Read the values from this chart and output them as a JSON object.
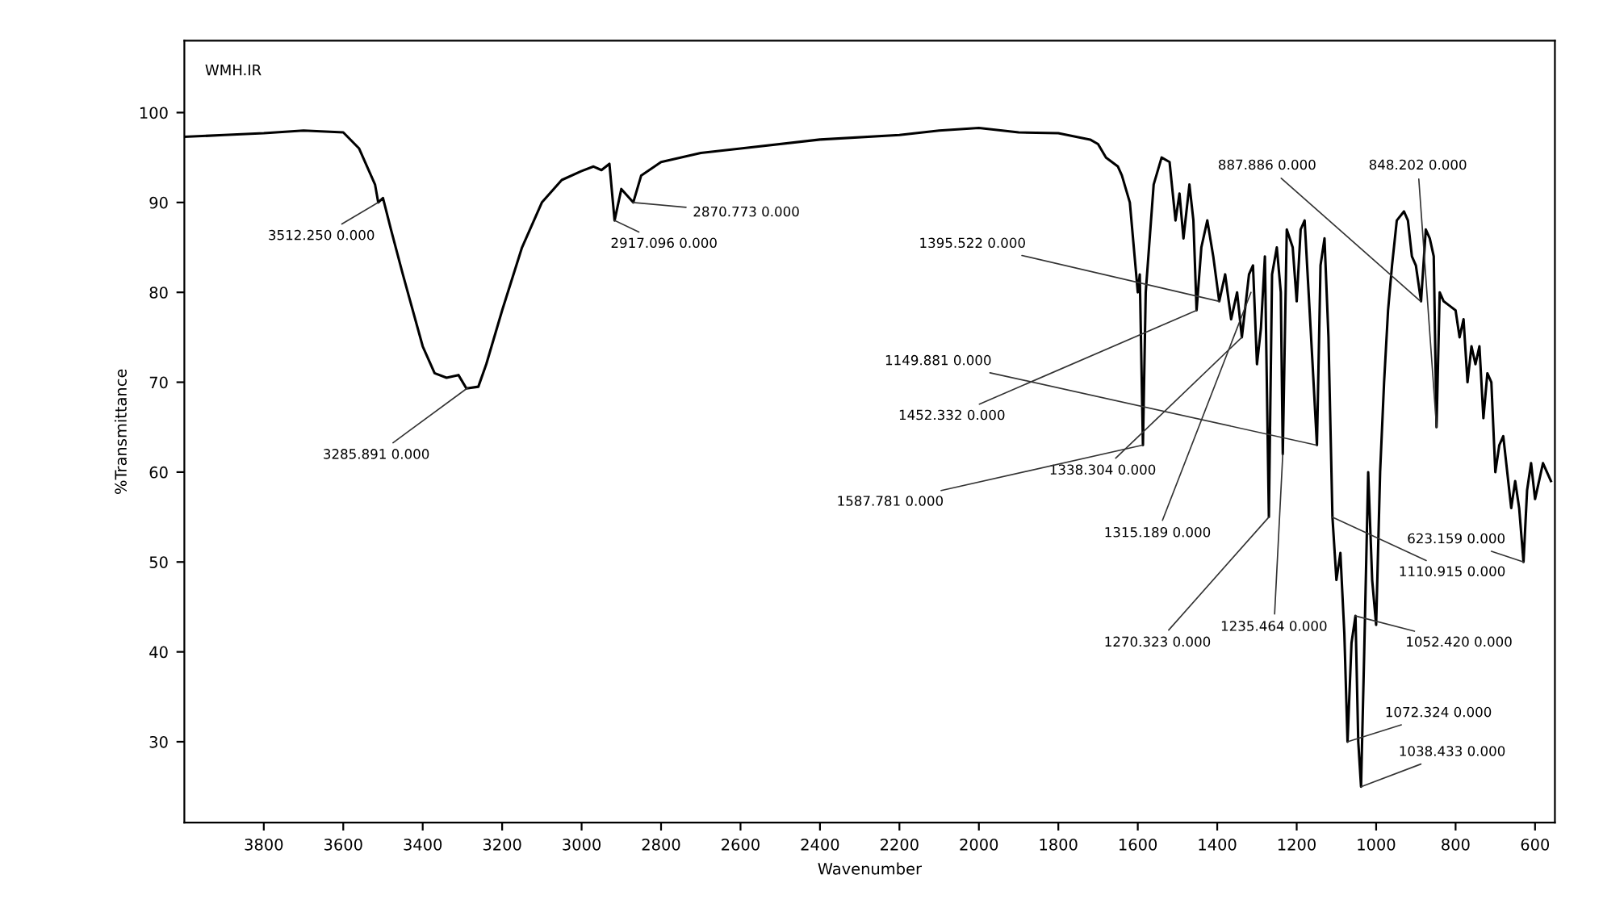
{
  "chart_data": {
    "type": "line",
    "xlabel": "Wavenumber",
    "ylabel": "%Transmittance",
    "xlim": [
      4000,
      550
    ],
    "ylim": [
      21,
      108
    ],
    "xticks": [
      3800,
      3600,
      3400,
      3200,
      3000,
      2800,
      2600,
      2400,
      2200,
      2000,
      1800,
      1600,
      1400,
      1200,
      1000,
      800,
      600
    ],
    "yticks": [
      30,
      40,
      50,
      60,
      70,
      80,
      90,
      100
    ],
    "grid": false,
    "legend": false,
    "marker": "none",
    "line_style": "solid",
    "x": [
      4000,
      3900,
      3800,
      3700,
      3600,
      3560,
      3520,
      3512,
      3500,
      3480,
      3450,
      3400,
      3370,
      3340,
      3310,
      3290,
      3260,
      3240,
      3200,
      3150,
      3100,
      3050,
      3000,
      2970,
      2950,
      2930,
      2917,
      2900,
      2880,
      2870,
      2850,
      2800,
      2700,
      2600,
      2400,
      2200,
      2100,
      2000,
      1900,
      1800,
      1720,
      1700,
      1680,
      1650,
      1640,
      1620,
      1600,
      1595,
      1587,
      1580,
      1560,
      1540,
      1520,
      1505,
      1495,
      1485,
      1470,
      1460,
      1452,
      1440,
      1425,
      1410,
      1395,
      1380,
      1365,
      1350,
      1338,
      1320,
      1310,
      1300,
      1290,
      1280,
      1270,
      1262,
      1250,
      1240,
      1235,
      1225,
      1210,
      1200,
      1190,
      1180,
      1170,
      1160,
      1149,
      1140,
      1130,
      1120,
      1110,
      1100,
      1090,
      1080,
      1072,
      1062,
      1052,
      1045,
      1038,
      1030,
      1020,
      1010,
      1000,
      990,
      980,
      970,
      960,
      948,
      930,
      920,
      910,
      900,
      887,
      875,
      865,
      855,
      848,
      840,
      830,
      815,
      800,
      790,
      780,
      770,
      760,
      750,
      740,
      730,
      720,
      710,
      700,
      690,
      680,
      670,
      660,
      650,
      640,
      629,
      620,
      610,
      600,
      590,
      580,
      560
    ],
    "series": [
      {
        "color": "#000000",
        "values": [
          97.3,
          97.5,
          97.7,
          98,
          97.8,
          96,
          92,
          90,
          90.5,
          87,
          82,
          74,
          71,
          70.5,
          70.8,
          69.3,
          69.5,
          72,
          78,
          85,
          90,
          92.5,
          93.5,
          94,
          93.6,
          94.3,
          88,
          91.5,
          90.5,
          90,
          93,
          94.5,
          95.5,
          96,
          97,
          97.5,
          98,
          98.3,
          97.8,
          97.7,
          97,
          96.5,
          95,
          94,
          93,
          90,
          80,
          82,
          63,
          80,
          92,
          95,
          94.5,
          88,
          91,
          86,
          92,
          88,
          78,
          85,
          88,
          84,
          79,
          82,
          77,
          80,
          75,
          82,
          83,
          72,
          76,
          84,
          55,
          82,
          85,
          80,
          62,
          87,
          85,
          79,
          87,
          88,
          80,
          72,
          63,
          83,
          86,
          75,
          55,
          48,
          51,
          42,
          30,
          41,
          44,
          30,
          25,
          40,
          60,
          48,
          43,
          60,
          70,
          78,
          83,
          88,
          89,
          88,
          84,
          83,
          79,
          87,
          86,
          84,
          65,
          80,
          79,
          78.5,
          78,
          75,
          77,
          70,
          74,
          72,
          74,
          66,
          71,
          70,
          60,
          63,
          64,
          60,
          56,
          59,
          56,
          50,
          58,
          61,
          57,
          59,
          61,
          59
        ]
      }
    ],
    "annotations": [
      "WMH.IR",
      {
        "text": "3512.250 0.000",
        "x": 3512,
        "y": 90
      },
      {
        "text": "3285.891 0.000",
        "x": 3286,
        "y": 69.4
      },
      {
        "text": "2917.096 0.000",
        "x": 2917,
        "y": 88
      },
      {
        "text": "2870.773 0.000",
        "x": 2871,
        "y": 90
      },
      {
        "text": "1395.522 0.000",
        "x": 1395,
        "y": 79
      },
      {
        "text": "1149.881 0.000",
        "x": 1150,
        "y": 63
      },
      {
        "text": "1452.332 0.000",
        "x": 1452,
        "y": 78
      },
      {
        "text": "1338.304 0.000",
        "x": 1338,
        "y": 75
      },
      {
        "text": "1587.781 0.000",
        "x": 1588,
        "y": 63
      },
      {
        "text": "1315.189 0.000",
        "x": 1315,
        "y": 80
      },
      {
        "text": "1270.323 0.000",
        "x": 1270,
        "y": 55
      },
      {
        "text": "1235.464 0.000",
        "x": 1235,
        "y": 62
      },
      {
        "text": "1110.915 0.000",
        "x": 1111,
        "y": 55
      },
      {
        "text": "1052.420 0.000",
        "x": 1052,
        "y": 44
      },
      {
        "text": "1072.324 0.000",
        "x": 1072,
        "y": 30
      },
      {
        "text": "1038.433 0.000",
        "x": 1038,
        "y": 25
      },
      {
        "text": "887.886 0.000",
        "x": 888,
        "y": 79
      },
      {
        "text": "848.202 0.000",
        "x": 848,
        "y": 65
      },
      {
        "text": "623.159 0.000",
        "x": 629,
        "y": 50
      }
    ]
  }
}
